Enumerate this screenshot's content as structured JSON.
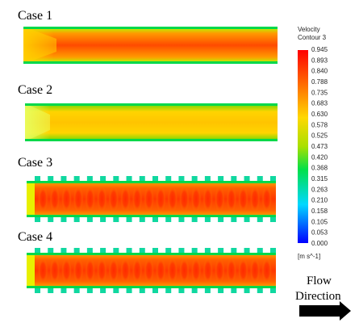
{
  "cases": [
    {
      "label": "Case 1",
      "pattern": "smooth-hot"
    },
    {
      "label": "Case 2",
      "pattern": "smooth-mild"
    },
    {
      "label": "Case 3",
      "pattern": "ribbed"
    },
    {
      "label": "Case 4",
      "pattern": "ribbed"
    }
  ],
  "legend": {
    "title": "Velocity",
    "subtitle": "Contour 3",
    "unit": "[m s^-1]",
    "ticks": [
      "0.945",
      "0.893",
      "0.840",
      "0.788",
      "0.735",
      "0.683",
      "0.630",
      "0.578",
      "0.525",
      "0.473",
      "0.420",
      "0.368",
      "0.315",
      "0.263",
      "0.210",
      "0.158",
      "0.105",
      "0.053",
      "0.000"
    ],
    "min": 0.0,
    "max": 0.945,
    "colormap": [
      "#ff0000",
      "#ff8000",
      "#ffff00",
      "#00ff00",
      "#00ffff",
      "#0000ff"
    ]
  },
  "flow": {
    "line1": "Flow",
    "line2": "Direction",
    "arrow_color": "#000000"
  }
}
